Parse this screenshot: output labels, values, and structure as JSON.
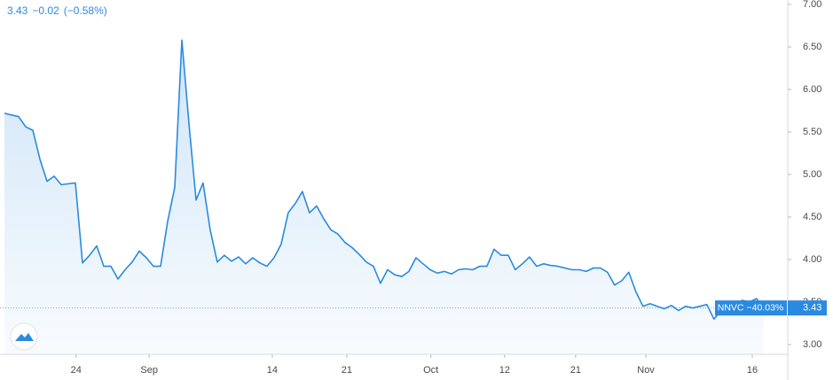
{
  "chart_data": {
    "type": "area",
    "legend": {
      "change": "−0.02",
      "change_pct": "(−0.58%)",
      "period_change": "−40.03%"
    },
    "series": [
      {
        "name": "NNVC",
        "color": "#2a8ae0",
        "values": [
          5.72,
          5.7,
          5.68,
          5.56,
          5.52,
          5.18,
          4.92,
          4.98,
          4.88,
          4.89,
          4.9,
          3.96,
          4.05,
          4.16,
          3.92,
          3.92,
          3.77,
          3.88,
          3.97,
          4.1,
          4.02,
          3.92,
          3.92,
          4.45,
          4.85,
          6.58,
          5.6,
          4.7,
          4.9,
          4.35,
          3.97,
          4.05,
          3.98,
          4.03,
          3.95,
          4.02,
          3.96,
          3.92,
          4.02,
          4.18,
          4.55,
          4.66,
          4.8,
          4.55,
          4.63,
          4.48,
          4.35,
          4.3,
          4.2,
          4.14,
          4.06,
          3.97,
          3.92,
          3.72,
          3.88,
          3.82,
          3.8,
          3.86,
          4.02,
          3.95,
          3.88,
          3.84,
          3.86,
          3.83,
          3.88,
          3.89,
          3.88,
          3.92,
          3.92,
          4.12,
          4.05,
          4.05,
          3.88,
          3.95,
          4.03,
          3.92,
          3.95,
          3.93,
          3.92,
          3.9,
          3.88,
          3.88,
          3.86,
          3.9,
          3.9,
          3.85,
          3.7,
          3.75,
          3.85,
          3.62,
          3.45,
          3.48,
          3.45,
          3.42,
          3.46,
          3.4,
          3.45,
          3.43,
          3.45,
          3.47,
          3.3,
          3.4,
          3.48,
          3.47,
          3.52,
          3.5,
          3.54,
          3.43
        ]
      }
    ],
    "xlim": [
      0,
      110.4
    ],
    "xticks": [
      {
        "value": 10.1,
        "label": "24"
      },
      {
        "value": 20.4,
        "label": "Sep"
      },
      {
        "value": 37.75,
        "label": "14"
      },
      {
        "value": 48.25,
        "label": "21"
      },
      {
        "value": 60.1,
        "label": "Oct"
      },
      {
        "value": 70.5,
        "label": "12"
      },
      {
        "value": 80.5,
        "label": "21"
      },
      {
        "value": 90.4,
        "label": "Nov"
      },
      {
        "value": 105.4,
        "label": "16"
      }
    ],
    "ylim": [
      2.885,
      7.052
    ],
    "yticks": [
      {
        "value": 3,
        "label": "3.00"
      },
      {
        "value": 3.5,
        "label": "3.50"
      },
      {
        "value": 4,
        "label": "4.00"
      },
      {
        "value": 4.5,
        "label": "4.50"
      },
      {
        "value": 5,
        "label": "5.00"
      },
      {
        "value": 5.5,
        "label": "5.50"
      },
      {
        "value": 6,
        "label": "6.00"
      },
      {
        "value": 6.5,
        "label": "6.50"
      },
      {
        "value": 7,
        "label": "7.00"
      }
    ],
    "grid": false
  }
}
